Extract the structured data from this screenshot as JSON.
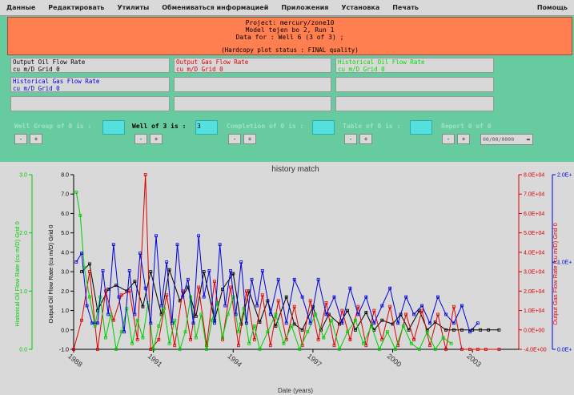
{
  "menu": {
    "items": [
      "Данные",
      "Редактировать",
      "Утилиты",
      "Обмениваться информацией",
      "Приложения",
      "Установка",
      "Печать"
    ],
    "help": "Помощь"
  },
  "header": {
    "project": "Project: mercury/zone10",
    "model": "Model tejen bo 2, Run 1",
    "data_for": "Data for : Well 6 (3 of 3) ;",
    "status": "(Hardcopy plot status : FINAL quality)"
  },
  "slots": [
    {
      "name": "Output Oil Flow Rate",
      "unit": "cu m/D Grid 0",
      "color": "#000000"
    },
    {
      "name": "Output Gas Flow Rate",
      "unit": "cu m/D Grid 0",
      "color": "#dd0000"
    },
    {
      "name": "Historical Oil Flow Rate",
      "unit": "cu m/D Grid 0",
      "color": "#00dd00"
    },
    {
      "name": "Historical Gas Flow Rate",
      "unit": "cu m/D Grid 0",
      "color": "#0000dd"
    }
  ],
  "selectors": {
    "well_group": {
      "label": "Well Group of 0 is :",
      "value": ""
    },
    "well": {
      "label": "Well of 3 is :",
      "value": "3"
    },
    "completion": {
      "label": "Completion of 0 is :",
      "value": ""
    },
    "table": {
      "label": "Table of 0 is :",
      "value": ""
    },
    "report": {
      "label": "Report 0 of 0"
    },
    "date_value": "00/00/0000",
    "minus": "-",
    "plus": "+"
  },
  "chart_data": {
    "type": "line",
    "title": "history match",
    "xlabel": "Date (years)",
    "x_ticks": [
      "1988",
      "1991",
      "1994",
      "1997",
      "2000",
      "2003"
    ],
    "x_range": [
      1988,
      2004.5
    ],
    "axes": {
      "left_inner": {
        "label": "Output Oil Flow Rate (cu m/D) Grid 0",
        "ticks": [
          "8.0",
          "7.0",
          "6.0",
          "5.0",
          "4.0",
          "3.0",
          "2.0",
          "1.0",
          "0.0",
          "-1.0"
        ],
        "range": [
          -1,
          8
        ],
        "color": "#000000"
      },
      "left_outer": {
        "label": "Historical Oil Flow Rate (cu m/D) Grid 0",
        "ticks": [
          "3.0",
          "2.0",
          "1.0",
          "0.0"
        ],
        "range": [
          0,
          3
        ],
        "color": "#00cc00"
      },
      "right_inner": {
        "label": "Output Gas Flow Rate (cu m/D) Grid 0",
        "ticks": [
          "8.0E+04",
          "7.0E+04",
          "6.0E+04",
          "5.0E+04",
          "4.0E+04",
          "3.0E+04",
          "2.0E+04",
          "1.0E+04",
          "0.0E+00",
          "-4.0E+00"
        ],
        "range": [
          -10000,
          80000
        ],
        "color": "#dd0000"
      },
      "right_outer": {
        "label": "",
        "ticks": [
          "2.0E+",
          "1.0E+",
          "0.0E+"
        ],
        "range": [
          0,
          2
        ],
        "color": "#0000dd"
      }
    },
    "series": [
      {
        "name": "Output Oil Flow Rate",
        "color": "#000000",
        "x": [
          1988.3,
          1988.6,
          1988.9,
          1989.3,
          1989.6,
          1990.0,
          1990.3,
          1990.6,
          1990.9,
          1991.3,
          1991.6,
          1992.0,
          1992.3,
          1992.6,
          1992.9,
          1993.3,
          1993.6,
          1994.0,
          1994.3,
          1994.6,
          1995.0,
          1995.3,
          1995.6,
          1996.0,
          1996.3,
          1996.6,
          1997.0,
          1997.3,
          1997.6,
          1998.0,
          1998.3,
          1998.6,
          1999.0,
          1999.3,
          1999.6,
          2000.0,
          2000.3,
          2000.6,
          2001.0,
          2001.3,
          2001.6,
          2002.0,
          2002.3,
          2002.6,
          2003.0,
          2003.3,
          2003.6,
          2004.0
        ],
        "y": [
          3.0,
          3.4,
          1.0,
          2.1,
          2.3,
          2.0,
          2.5,
          1.2,
          3.0,
          0.8,
          3.1,
          1.5,
          2.2,
          0.7,
          3.0,
          0.5,
          2.1,
          2.9,
          0.3,
          2.0,
          0.4,
          1.5,
          0.2,
          1.7,
          0.3,
          0.0,
          1.2,
          0.0,
          0.8,
          0.3,
          1.0,
          0.0,
          0.9,
          0.0,
          0.5,
          0.3,
          0.8,
          0.0,
          1.0,
          0.0,
          0.4,
          0.0,
          0.0,
          0.0,
          0.0,
          0.0,
          0.0,
          0.0
        ]
      },
      {
        "name": "Output Gas Flow Rate",
        "color": "#dd0000",
        "x": [
          1988.0,
          1988.3,
          1988.6,
          1988.9,
          1989.2,
          1989.5,
          1989.8,
          1990.1,
          1990.4,
          1990.7,
          1990.9,
          1991.2,
          1991.5,
          1991.8,
          1992.1,
          1992.4,
          1992.7,
          1993.0,
          1993.3,
          1993.6,
          1993.9,
          1994.2,
          1994.5,
          1994.8,
          1995.1,
          1995.4,
          1995.7,
          1996.0,
          1996.3,
          1996.6,
          1996.9,
          1997.2,
          1997.5,
          1997.8,
          1998.1,
          1998.4,
          1998.7,
          1999.0,
          1999.3,
          1999.6,
          1999.9,
          2000.2,
          2000.5,
          2000.8,
          2001.1,
          2001.4,
          2001.7,
          2002.0,
          2002.3,
          2002.6,
          2002.9,
          2003.2,
          2003.5,
          2004.0
        ],
        "y": [
          -10000,
          5000,
          30000,
          -10000,
          20000,
          5000,
          18000,
          20000,
          -5000,
          80000,
          -10000,
          -5000,
          18000,
          -8000,
          20000,
          -5000,
          22000,
          -8000,
          25000,
          -5000,
          22000,
          -8000,
          20000,
          -5000,
          18000,
          -8000,
          15000,
          -5000,
          12000,
          -8000,
          15000,
          -5000,
          14000,
          -8000,
          10000,
          -5000,
          12000,
          -8000,
          10000,
          -5000,
          12000,
          -8000,
          8000,
          -5000,
          10000,
          -8000,
          8000,
          -10000,
          12000,
          -10000,
          -10000,
          -10000,
          -10000,
          -10000
        ]
      },
      {
        "name": "Historical Oil Flow Rate",
        "color": "#00cc00",
        "x": [
          1988.1,
          1988.25,
          1988.4,
          1988.6,
          1988.8,
          1989.0,
          1989.2,
          1989.4,
          1989.6,
          1989.8,
          1990.0,
          1990.2,
          1990.4,
          1990.6,
          1990.8,
          1991.0,
          1991.2,
          1991.4,
          1991.6,
          1991.8,
          1992.0,
          1992.2,
          1992.4,
          1992.6,
          1992.8,
          1993.0,
          1993.2,
          1993.4,
          1993.6,
          1993.8,
          1994.0,
          1994.2,
          1994.4,
          1994.6,
          1994.8,
          1995.0,
          1995.3,
          1995.6,
          1995.9,
          1996.2,
          1996.5,
          1996.8,
          1997.1,
          1997.4,
          1997.7,
          1998.0,
          1998.3,
          1998.6,
          1998.9,
          1999.2,
          1999.5,
          1999.8,
          2000.1,
          2000.4,
          2000.7,
          2001.0,
          2001.3,
          2001.6,
          2001.9,
          2002.2
        ],
        "y": [
          2.7,
          2.3,
          1.4,
          0.9,
          0.4,
          0.9,
          0.2,
          0.6,
          0.0,
          0.3,
          0.7,
          0.1,
          0.5,
          0.2,
          0.8,
          0.0,
          0.4,
          0.7,
          0.1,
          0.5,
          0.0,
          0.3,
          0.9,
          0.2,
          0.6,
          0.0,
          0.5,
          0.8,
          0.2,
          0.6,
          0.9,
          0.3,
          0.7,
          0.1,
          0.4,
          0.0,
          0.3,
          0.6,
          0.1,
          0.4,
          0.0,
          0.3,
          0.6,
          0.2,
          0.5,
          0.0,
          0.3,
          0.5,
          0.1,
          0.4,
          0.0,
          0.3,
          0.0,
          0.4,
          0.1,
          0.0,
          0.3,
          0.0,
          0.2,
          0.1
        ]
      },
      {
        "name": "Historical Gas Flow Rate",
        "color": "#0000dd",
        "x": [
          1988.1,
          1988.3,
          1988.5,
          1988.7,
          1988.9,
          1989.1,
          1989.3,
          1989.5,
          1989.7,
          1989.9,
          1990.1,
          1990.3,
          1990.5,
          1990.7,
          1990.9,
          1991.1,
          1991.3,
          1991.5,
          1991.7,
          1991.9,
          1992.1,
          1992.3,
          1992.5,
          1992.7,
          1992.9,
          1993.1,
          1993.3,
          1993.5,
          1993.7,
          1993.9,
          1994.1,
          1994.3,
          1994.5,
          1994.7,
          1994.9,
          1995.1,
          1995.4,
          1995.7,
          1996.0,
          1996.3,
          1996.6,
          1996.9,
          1997.2,
          1997.5,
          1997.8,
          1998.1,
          1998.4,
          1998.7,
          1999.0,
          1999.3,
          1999.6,
          1999.9,
          2000.2,
          2000.5,
          2000.8,
          2001.1,
          2001.4,
          2001.7,
          2002.0,
          2002.3,
          2002.6,
          2002.9,
          2003.2
        ],
        "y": [
          1.0,
          1.1,
          0.5,
          0.3,
          0.3,
          0.9,
          0.4,
          1.2,
          0.6,
          0.2,
          0.9,
          0.4,
          1.1,
          0.7,
          0.3,
          1.3,
          0.5,
          1.0,
          0.3,
          1.2,
          0.6,
          0.8,
          0.3,
          1.3,
          0.6,
          0.9,
          0.3,
          1.2,
          0.5,
          0.9,
          0.4,
          1.0,
          0.3,
          0.8,
          0.5,
          0.9,
          0.4,
          0.8,
          0.3,
          0.8,
          0.6,
          0.3,
          0.8,
          0.4,
          0.6,
          0.3,
          0.7,
          0.4,
          0.6,
          0.3,
          0.5,
          0.7,
          0.3,
          0.6,
          0.4,
          0.5,
          0.3,
          0.6,
          0.4,
          0.3,
          0.5,
          0.2,
          0.3
        ]
      }
    ],
    "grid": false,
    "legend": "none"
  }
}
